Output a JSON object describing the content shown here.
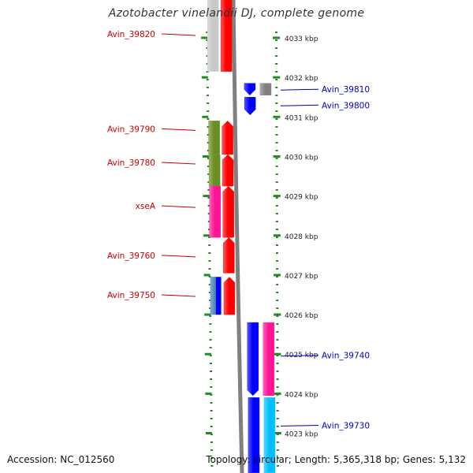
{
  "title": "Azotobacter vinelandii DJ, complete genome",
  "footer": {
    "accession": "Accession: NC_012560",
    "topology": "Topology: circular; Length: 5,365,318 bp; Genes: 5,132"
  },
  "colors": {
    "left_label": "#cc0000",
    "right_label": "#0000bb",
    "backbone": "#808080",
    "tick": "#228b22"
  },
  "scale": {
    "labels": [
      {
        "kbp": 4033,
        "text": "4033 kbp"
      },
      {
        "kbp": 4032,
        "text": "4032 kbp"
      },
      {
        "kbp": 4031,
        "text": "4031 kbp"
      },
      {
        "kbp": 4030,
        "text": "4030 kbp"
      },
      {
        "kbp": 4029,
        "text": "4029 kbp"
      },
      {
        "kbp": 4028,
        "text": "4028 kbp"
      },
      {
        "kbp": 4027,
        "text": "4027 kbp"
      },
      {
        "kbp": 4026,
        "text": "4026 kbp"
      },
      {
        "kbp": 4025,
        "text": "4025 kbp"
      },
      {
        "kbp": 4024,
        "text": "4024 kbp"
      },
      {
        "kbp": 4023,
        "text": "4023 kbp"
      }
    ]
  },
  "left_labels": [
    {
      "text": "Avin_39820",
      "kbp": 4033.1
    },
    {
      "text": "Avin_39790",
      "kbp": 4030.7
    },
    {
      "text": "Avin_39780",
      "kbp": 4029.85
    },
    {
      "text": "xseA",
      "kbp": 4028.75
    },
    {
      "text": "Avin_39760",
      "kbp": 4027.5
    },
    {
      "text": "Avin_39750",
      "kbp": 4026.5
    }
  ],
  "right_labels": [
    {
      "text": "Avin_39810",
      "kbp": 4031.7
    },
    {
      "text": "Avin_39800",
      "kbp": 4031.3
    },
    {
      "text": "Avin_39740",
      "kbp": 4024.97
    },
    {
      "text": "Avin_39730",
      "kbp": 4023.2
    }
  ],
  "features": [
    {
      "name": "reverse-cds-track",
      "track": "rev_cds",
      "start": 4034,
      "end": 4032.15,
      "color": "#ff0000",
      "arrow": "none"
    },
    {
      "name": "reverse-gene-track",
      "track": "rev_gene",
      "start": 4034,
      "end": 4032.15,
      "color": "#c8c8c8",
      "arrow": "none"
    },
    {
      "name": "forward-cds-Avin_39810",
      "track": "fwd_cds",
      "start": 4031.85,
      "end": 4031.55,
      "color": "#0000ff",
      "arrow": "down"
    },
    {
      "name": "forward-gene-Avin_39810",
      "track": "fwd_gene",
      "start": 4031.85,
      "end": 4031.55,
      "color": "#808080",
      "arrow": "none"
    },
    {
      "name": "forward-cds-Avin_39800",
      "track": "fwd_cds",
      "start": 4031.5,
      "end": 4031.05,
      "color": "#0000ff",
      "arrow": "down"
    },
    {
      "name": "reverse-cds-Avin_39790",
      "track": "rev_cds",
      "start": 4030.05,
      "end": 4030.9,
      "color": "#ff0000",
      "arrow": "up"
    },
    {
      "name": "reverse-gene-Avin_39790",
      "track": "rev_gene",
      "start": 4030.05,
      "end": 4030.9,
      "color": "#6b8e23",
      "arrow": "none"
    },
    {
      "name": "reverse-cds-Avin_39780",
      "track": "rev_cds",
      "start": 4029.25,
      "end": 4030.05,
      "color": "#ff0000",
      "arrow": "up"
    },
    {
      "name": "reverse-gene-Avin_39780",
      "track": "rev_gene",
      "start": 4029.25,
      "end": 4030.05,
      "color": "#6b8e23",
      "arrow": "none"
    },
    {
      "name": "reverse-cds-xseA",
      "track": "rev_cds",
      "start": 4027.95,
      "end": 4029.25,
      "color": "#ff0000",
      "arrow": "up"
    },
    {
      "name": "reverse-gene-xseA",
      "track": "rev_gene",
      "start": 4027.95,
      "end": 4029.25,
      "color": "#ff1493",
      "arrow": "none"
    },
    {
      "name": "reverse-cds-Avin_39760",
      "track": "rev_cds",
      "start": 4027.05,
      "end": 4027.95,
      "color": "#ff0000",
      "arrow": "up"
    },
    {
      "name": "reverse-cds-Avin_39750",
      "track": "rev_cds",
      "start": 4026.0,
      "end": 4026.95,
      "color": "#ff0000",
      "arrow": "up"
    },
    {
      "name": "reverse-gene-Avin_39750",
      "track": "rev_gene",
      "start": 4026.0,
      "end": 4026.95,
      "color": "#4682b4",
      "arrow": "none",
      "inner": "#0000ff"
    },
    {
      "name": "forward-cds-Avin_39740",
      "track": "fwd_cds",
      "start": 4025.8,
      "end": 4023.95,
      "color": "#0000ff",
      "arrow": "down"
    },
    {
      "name": "forward-gene-Avin_39740",
      "track": "fwd_gene",
      "start": 4025.8,
      "end": 4023.95,
      "color": "#ff1493",
      "arrow": "none"
    },
    {
      "name": "forward-cds-Avin_39730",
      "track": "fwd_cds",
      "start": 4023.9,
      "end": 4022,
      "color": "#0000ff",
      "arrow": "none"
    },
    {
      "name": "forward-gene-Avin_39730",
      "track": "fwd_gene",
      "start": 4023.9,
      "end": 4022,
      "color": "#00bfff",
      "arrow": "none"
    }
  ]
}
